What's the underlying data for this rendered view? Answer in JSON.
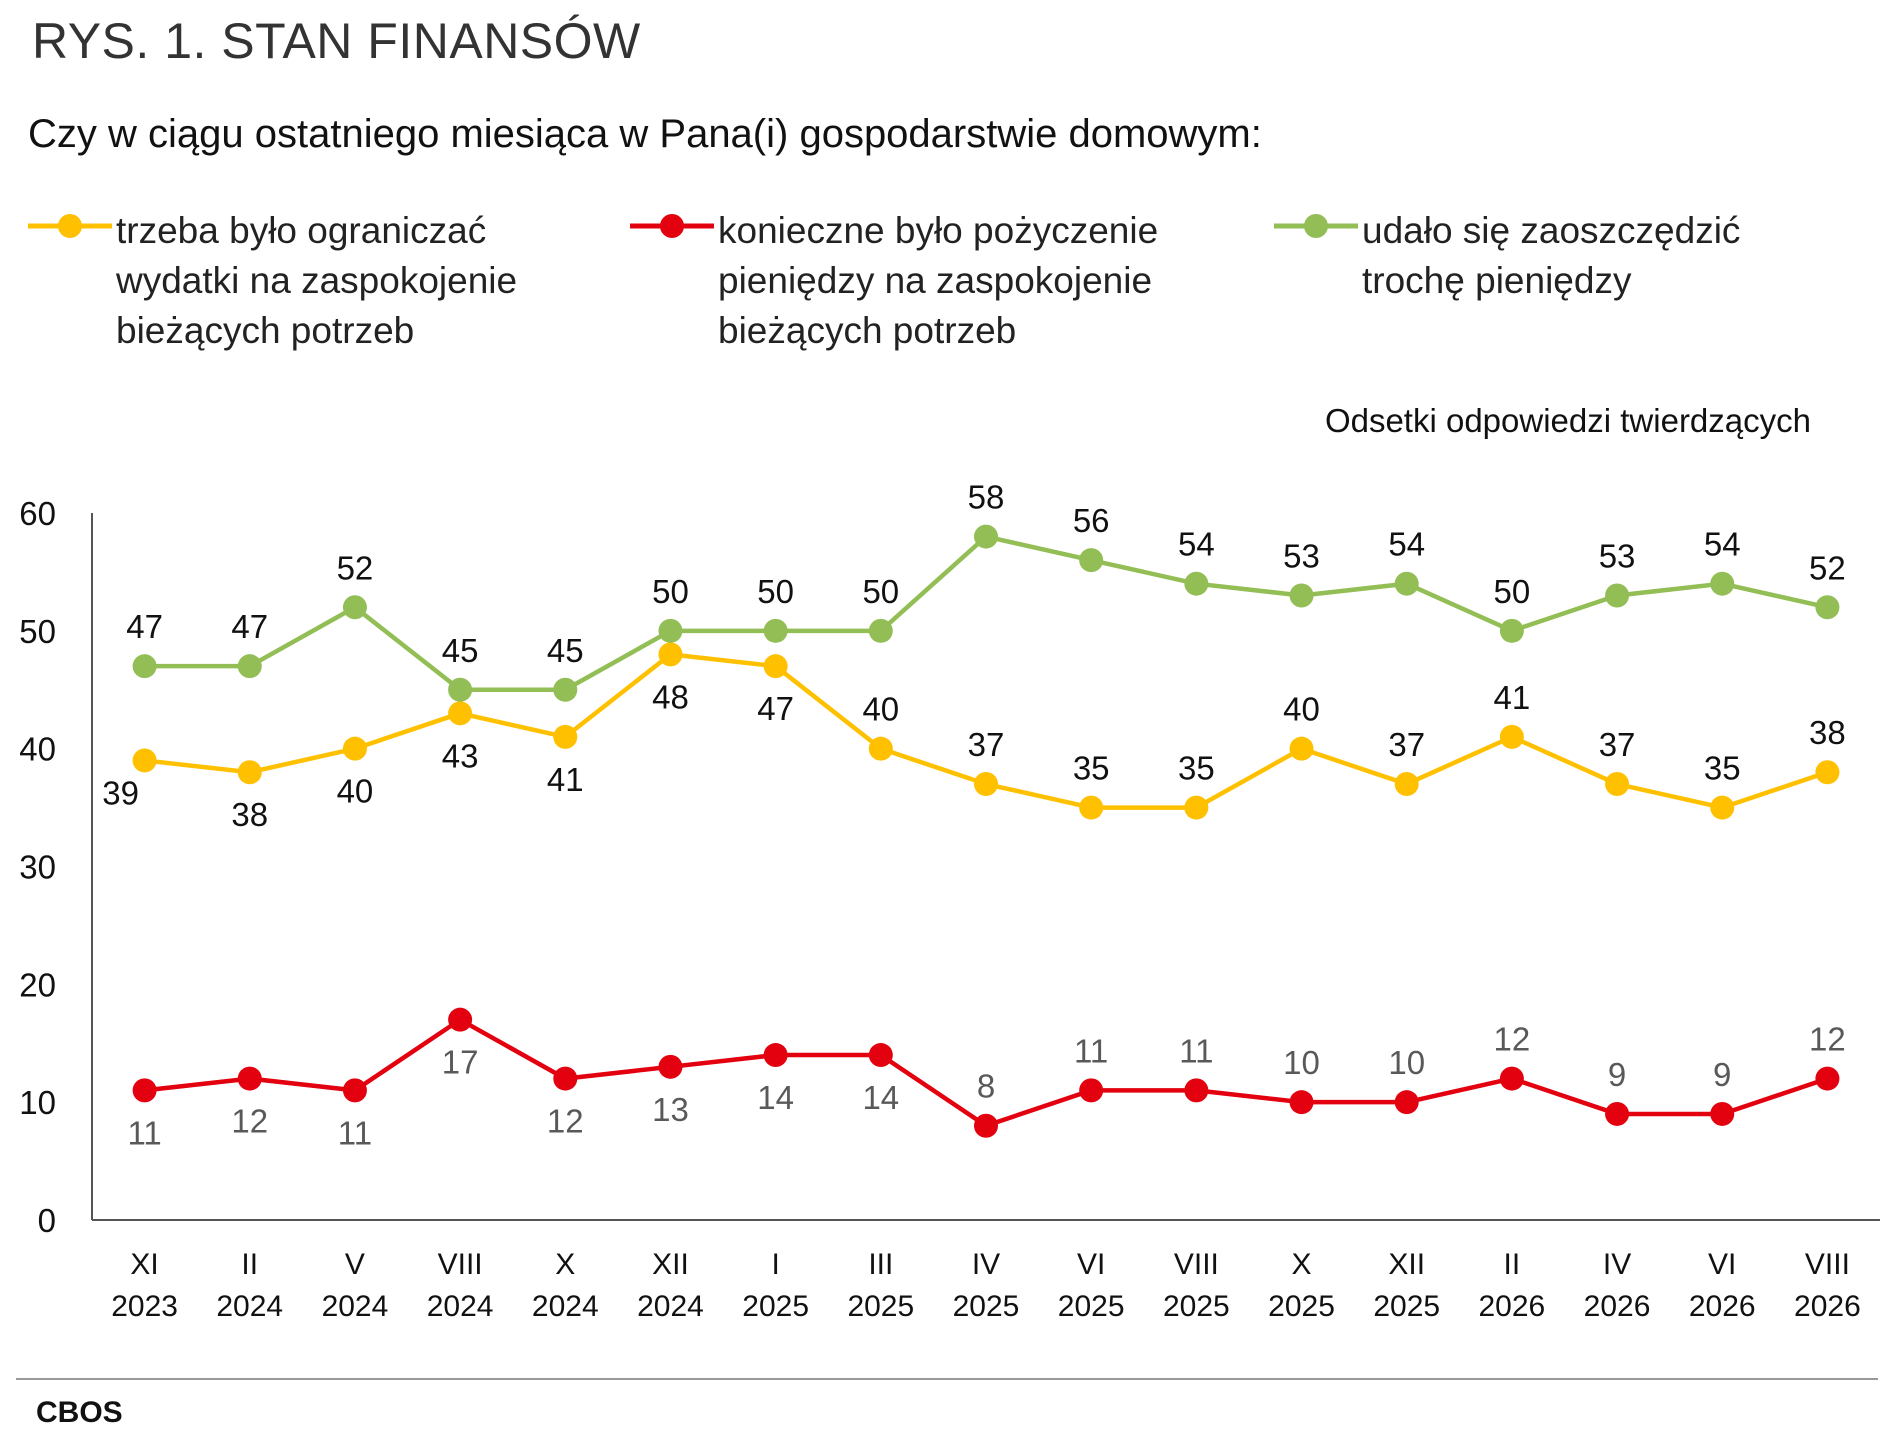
{
  "title": "RYS. 1. STAN FINANSÓW",
  "subtitle": "Czy w ciągu ostatniego miesiąca w Pana(i) gospodarstwie domowym:",
  "unit_note": "Odsetki odpowiedzi twierdzących",
  "source": "CBOS",
  "colors": {
    "yellow": "#FFC000",
    "red": "#E3000F",
    "green": "#92BE55",
    "red_labels": "#595959"
  },
  "chart_data": {
    "type": "line",
    "categories": [
      [
        "XI",
        "2023"
      ],
      [
        "II",
        "2024"
      ],
      [
        "V",
        "2024"
      ],
      [
        "VIII",
        "2024"
      ],
      [
        "X",
        "2024"
      ],
      [
        "XII",
        "2024"
      ],
      [
        "I",
        "2025"
      ],
      [
        "III",
        "2025"
      ],
      [
        "IV",
        "2025"
      ],
      [
        "VI",
        "2025"
      ],
      [
        "VIII",
        "2025"
      ],
      [
        "X",
        "2025"
      ],
      [
        "XII",
        "2025"
      ],
      [
        "II",
        "2026"
      ],
      [
        "IV",
        "2026"
      ],
      [
        "VI",
        "2026"
      ],
      [
        "VIII",
        "2026"
      ]
    ],
    "ylim": [
      0,
      60
    ],
    "yticks": [
      0,
      10,
      20,
      30,
      40,
      50,
      60
    ],
    "legend_position": "top",
    "series": [
      {
        "name": "trzeba było ograniczać wydatki na zaspokojenie bieżących potrzeb",
        "name_lines": [
          "trzeba było ograniczać",
          "wydatki na zaspokojenie",
          "bieżących potrzeb"
        ],
        "color": "#FFC000",
        "values": [
          39,
          38,
          40,
          43,
          41,
          48,
          47,
          40,
          37,
          35,
          35,
          40,
          37,
          41,
          37,
          35,
          38
        ],
        "label_pos": [
          "below-left",
          "below",
          "below",
          "below",
          "below",
          "below",
          "below",
          "above",
          "above",
          "above",
          "above",
          "above",
          "above",
          "above",
          "above",
          "above",
          "above"
        ]
      },
      {
        "name": "konieczne było pożyczenie pieniędzy na zaspokojenie bieżących potrzeb",
        "name_lines": [
          "konieczne było pożyczenie",
          "pieniędzy na zaspokojenie",
          "bieżących potrzeb"
        ],
        "color": "#E3000F",
        "values": [
          11,
          12,
          11,
          17,
          12,
          13,
          14,
          14,
          8,
          11,
          11,
          10,
          10,
          12,
          9,
          9,
          12
        ],
        "label_pos": [
          "below",
          "below",
          "below",
          "below",
          "below",
          "below",
          "below",
          "below",
          "above",
          "above",
          "above",
          "above",
          "above",
          "above",
          "above",
          "above",
          "above"
        ]
      },
      {
        "name": "udało się zaoszczędzić trochę pieniędzy",
        "name_lines": [
          "udało się zaoszczędzić",
          "trochę pieniędzy"
        ],
        "color": "#92BE55",
        "values": [
          47,
          47,
          52,
          45,
          45,
          50,
          50,
          50,
          58,
          56,
          54,
          53,
          54,
          50,
          53,
          54,
          52
        ],
        "label_pos": [
          "above",
          "above",
          "above",
          "above",
          "above",
          "above",
          "above",
          "above",
          "above",
          "above",
          "above",
          "above",
          "above",
          "above",
          "above",
          "above",
          "above"
        ]
      }
    ]
  }
}
